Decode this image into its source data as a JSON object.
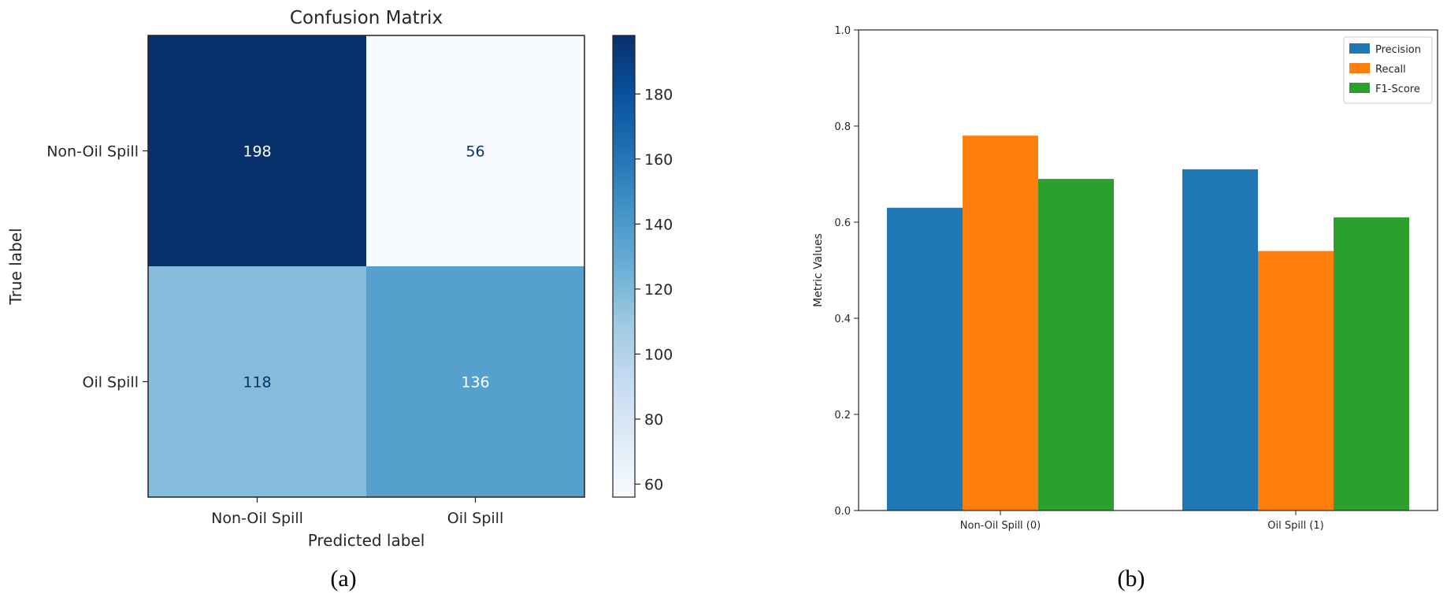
{
  "panels": {
    "a_label": "(a)",
    "b_label": "(b)"
  },
  "chart_data": [
    {
      "type": "heatmap",
      "title": "Confusion Matrix",
      "xlabel": "Predicted label",
      "ylabel": "True label",
      "x_categories": [
        "Non-Oil Spill",
        "Oil Spill"
      ],
      "y_categories": [
        "Non-Oil Spill",
        "Oil Spill"
      ],
      "values": [
        [
          198,
          56
        ],
        [
          118,
          136
        ]
      ],
      "colormap": "Blues",
      "colorbar": {
        "ticks": [
          "180",
          "160",
          "140",
          "120",
          "100",
          "80",
          "60"
        ],
        "range": [
          56,
          198
        ]
      }
    },
    {
      "type": "bar",
      "title": "",
      "xlabel": "",
      "ylabel": "Metric Values",
      "categories": [
        "Non-Oil Spill (0)",
        "Oil Spill (1)"
      ],
      "ylim": [
        0,
        1.0
      ],
      "yticks": [
        "0.0",
        "0.2",
        "0.4",
        "0.6",
        "0.8",
        "1.0"
      ],
      "legend_position": "top-right",
      "series": [
        {
          "name": "Precision",
          "values": [
            0.63,
            0.71
          ],
          "color": "#1f77b4"
        },
        {
          "name": "Recall",
          "values": [
            0.78,
            0.54
          ],
          "color": "#ff7f0e"
        },
        {
          "name": "F1-Score",
          "values": [
            0.69,
            0.61
          ],
          "color": "#2ca02c"
        }
      ]
    }
  ]
}
